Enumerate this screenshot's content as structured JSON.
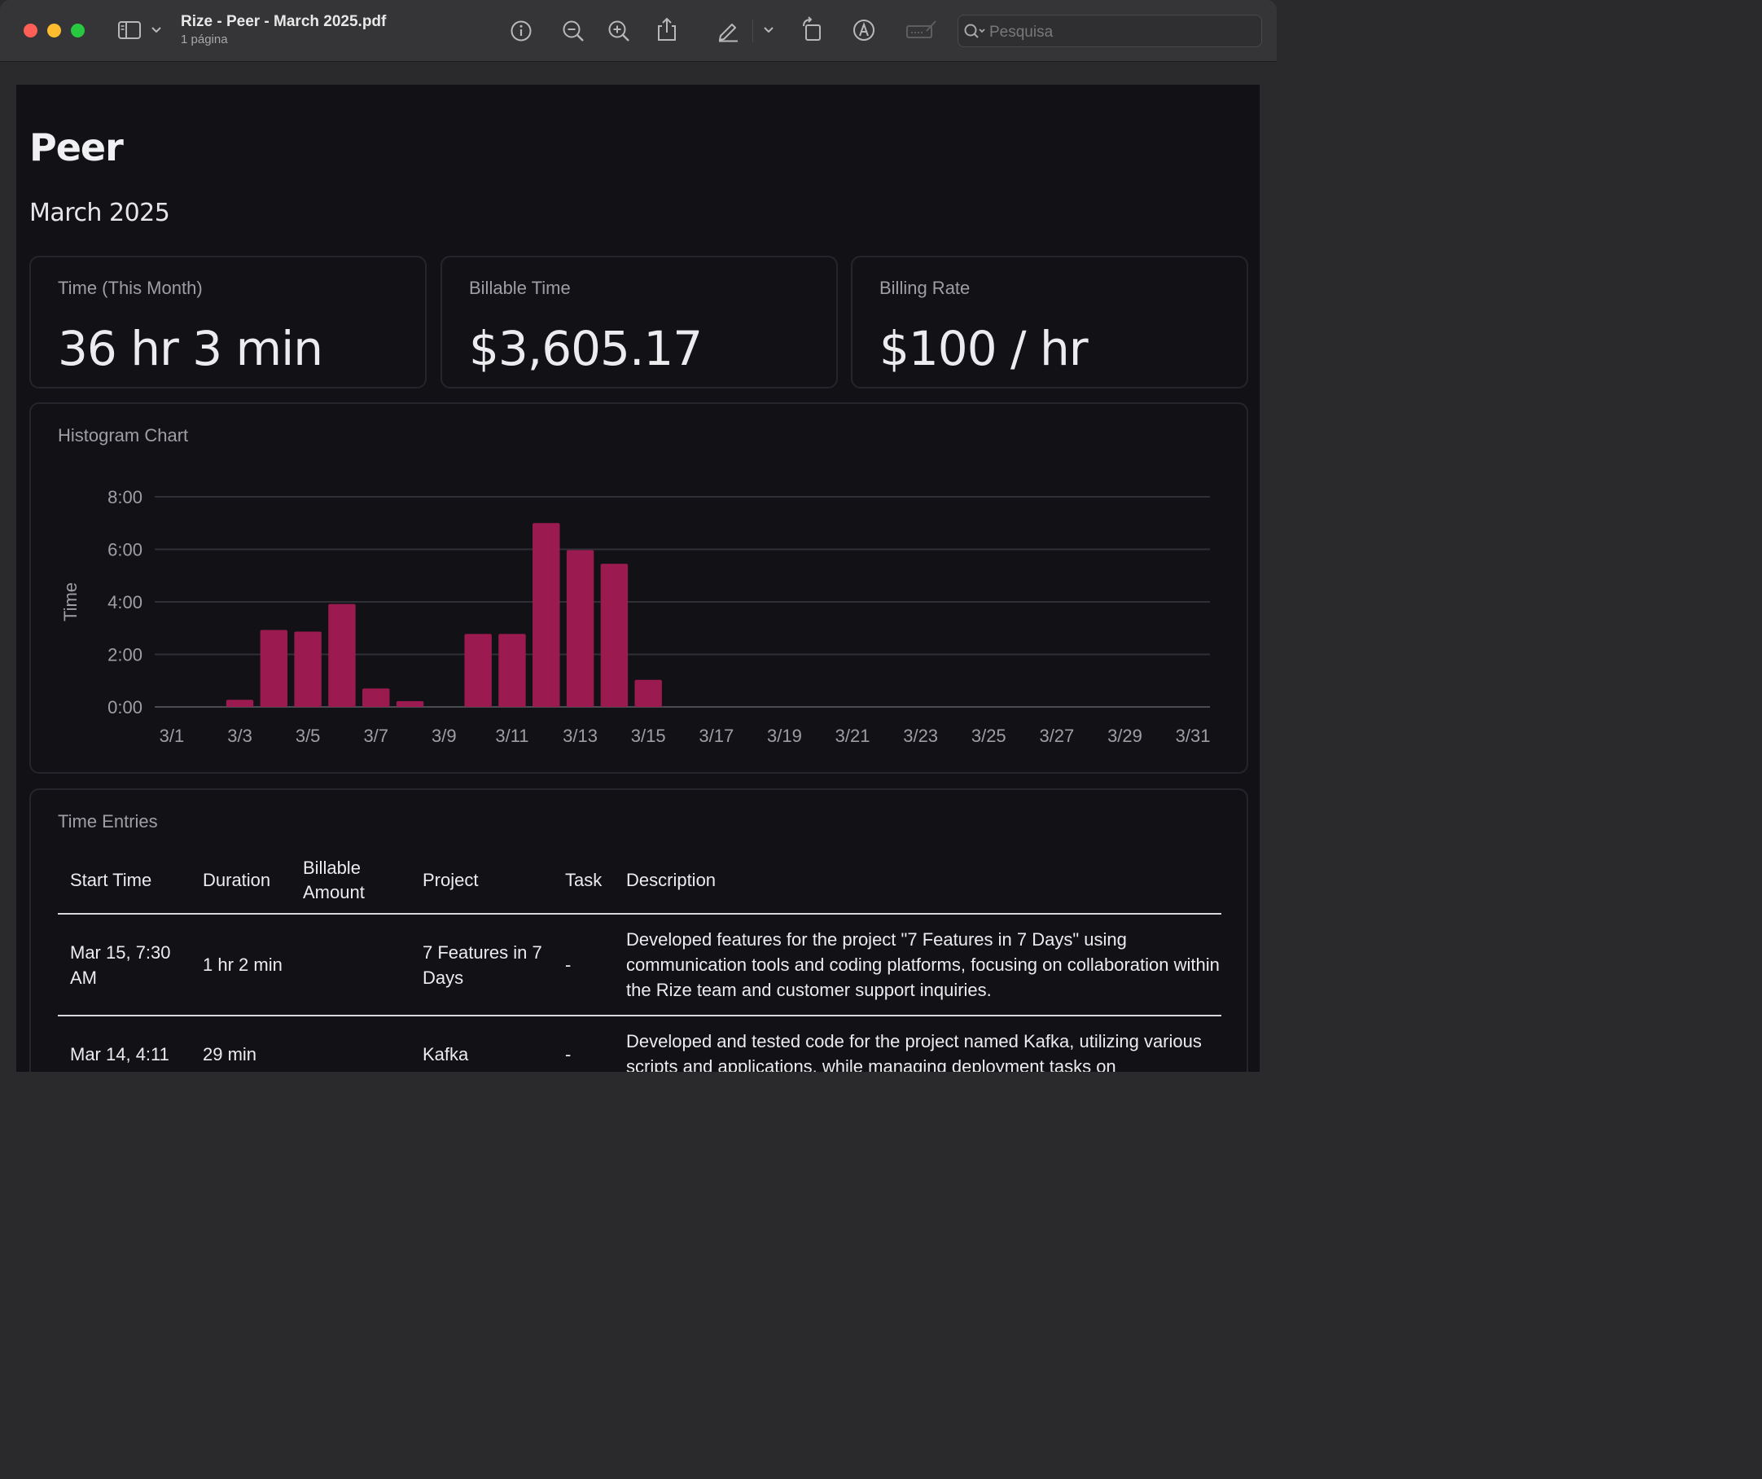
{
  "window": {
    "title": "Rize - Peer - March 2025.pdf",
    "subtitle": "1 página",
    "search_placeholder": "Pesquisa",
    "toolbar_icons": [
      "sidebar-icon",
      "chevron-down-icon",
      "info-icon",
      "zoom-out-icon",
      "zoom-in-icon",
      "share-icon",
      "highlight-pen-icon",
      "chevron-down-icon",
      "rotate-icon",
      "markup-icon",
      "signature-icon",
      "search-icon"
    ]
  },
  "report": {
    "title": "Peer",
    "period": "March 2025",
    "kpis": [
      {
        "label": "Time (This Month)",
        "value": "36 hr 3 min"
      },
      {
        "label": "Billable Time",
        "value": "$3,605.17"
      },
      {
        "label": "Billing Rate",
        "value": "$100 / hr"
      }
    ],
    "chart_title": "Histogram Chart",
    "entries_title": "Time Entries",
    "table": {
      "headers": [
        "Start Time",
        "Duration",
        "Billable Amount",
        "Project",
        "Task",
        "Description"
      ],
      "rows": [
        [
          "Mar 15, 7:30 AM",
          "1 hr 2 min",
          "",
          "7 Features in 7 Days",
          "-",
          "Developed features for the project \"7 Features in 7 Days\" using communication tools and coding platforms, focusing on collaboration within the Rize team and customer support inquiries."
        ],
        [
          "Mar 14, 4:11",
          "29 min",
          "",
          "Kafka",
          "-",
          "Developed and tested code for the project named Kafka, utilizing various scripts and applications, while managing deployment tasks on"
        ]
      ]
    }
  },
  "chart_data": {
    "type": "bar",
    "title": "Histogram Chart",
    "xlabel": "",
    "ylabel": "Time",
    "ylim": [
      0,
      8
    ],
    "yticks": [
      "0:00",
      "2:00",
      "4:00",
      "6:00",
      "8:00"
    ],
    "xticks": [
      "3/1",
      "3/3",
      "3/5",
      "3/7",
      "3/9",
      "3/11",
      "3/13",
      "3/15",
      "3/17",
      "3/19",
      "3/21",
      "3/23",
      "3/25",
      "3/27",
      "3/29",
      "3/31"
    ],
    "categories": [
      "3/1",
      "3/2",
      "3/3",
      "3/4",
      "3/5",
      "3/6",
      "3/7",
      "3/8",
      "3/9",
      "3/10",
      "3/11",
      "3/12",
      "3/13",
      "3/14",
      "3/15",
      "3/16",
      "3/17",
      "3/18",
      "3/19",
      "3/20",
      "3/21",
      "3/22",
      "3/23",
      "3/24",
      "3/25",
      "3/26",
      "3/27",
      "3/28",
      "3/29",
      "3/30",
      "3/31"
    ],
    "values": [
      0,
      0,
      0.27,
      2.93,
      2.87,
      3.92,
      0.7,
      0.22,
      0,
      2.78,
      2.78,
      7.0,
      5.97,
      5.45,
      1.03,
      0,
      0,
      0,
      0,
      0,
      0,
      0,
      0,
      0,
      0,
      0,
      0,
      0,
      0,
      0,
      0
    ],
    "bar_color": "#9b1a50",
    "grid": true
  }
}
